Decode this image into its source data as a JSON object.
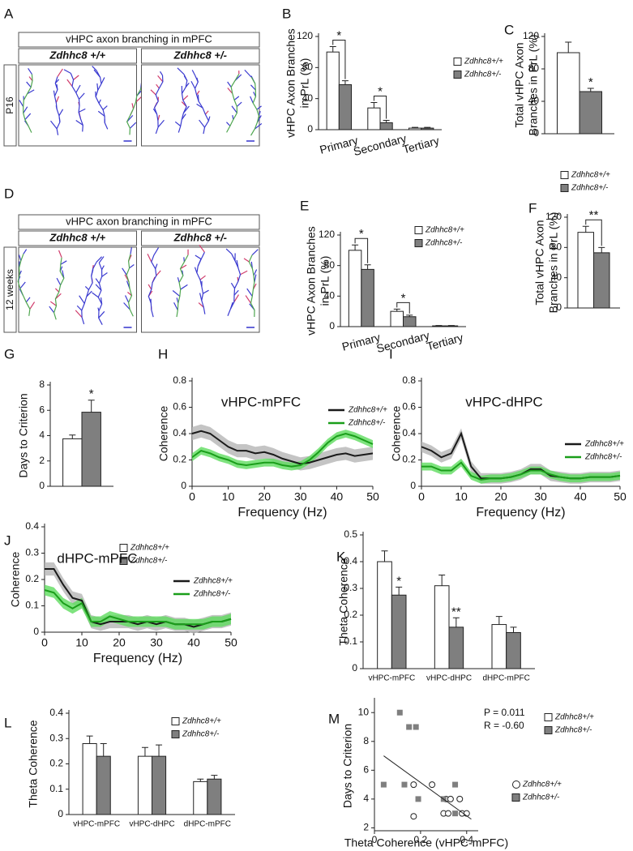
{
  "chart_data": [
    {
      "panel": "A",
      "type": "image",
      "title": "vHPC axon branching in mPFC",
      "columns": [
        "Zdhhc8 +/+",
        "Zdhhc8 +/-"
      ],
      "row_label": "P16"
    },
    {
      "panel": "B",
      "type": "bar",
      "ylabel": [
        "vHPC Axon Branches",
        "in PrL (%)"
      ],
      "categories": [
        "Primary",
        "Secondary",
        "Tertiary"
      ],
      "series": [
        {
          "name": "Zdhhc8+/+",
          "color": "#ffffff",
          "values": [
            100,
            28,
            2
          ],
          "errors": [
            7,
            7,
            1
          ]
        },
        {
          "name": "Zdhhc8+/-",
          "color": "#7f7f7f",
          "values": [
            58,
            9,
            2
          ],
          "errors": [
            5,
            3,
            1
          ]
        }
      ],
      "ylim": [
        0,
        120
      ],
      "yticks": [
        0,
        40,
        80,
        120
      ],
      "brackets": true,
      "annotations": [
        {
          "text": "*",
          "category": 0
        },
        {
          "text": "*",
          "category": 1
        }
      ]
    },
    {
      "panel": "C",
      "type": "bar",
      "ylabel": [
        "Total vHPC Axon",
        "Branches in PrL (%)"
      ],
      "series": [
        {
          "name": "Zdhhc8+/+",
          "color": "#ffffff",
          "values": [
            100
          ],
          "errors": [
            13
          ]
        },
        {
          "name": "Zdhhc8+/-",
          "color": "#7f7f7f",
          "values": [
            52
          ],
          "errors": [
            4
          ]
        }
      ],
      "ylim": [
        0,
        120
      ],
      "yticks": [
        0,
        40,
        80,
        120
      ],
      "brackets": false,
      "annotations": [
        {
          "text": "*",
          "category": 0
        }
      ]
    },
    {
      "panel": "D",
      "type": "image",
      "title": "vHPC axon branching in mPFC",
      "columns": [
        "Zdhhc8 +/+",
        "Zdhhc8 +/-"
      ],
      "row_label": "12 weeks"
    },
    {
      "panel": "E",
      "type": "bar",
      "ylabel": [
        "vHPC Axon Branches",
        "in PrL (%)"
      ],
      "categories": [
        "Primary",
        "Secondary",
        "Tertiary"
      ],
      "series": [
        {
          "name": "Zdhhc8+/+",
          "color": "#ffffff",
          "values": [
            100,
            20,
            1
          ],
          "errors": [
            7,
            3,
            0.5
          ]
        },
        {
          "name": "Zdhhc8+/-",
          "color": "#7f7f7f",
          "values": [
            75,
            13,
            1
          ],
          "errors": [
            6,
            2,
            0.5
          ]
        }
      ],
      "ylim": [
        0,
        120
      ],
      "yticks": [
        0,
        40,
        80,
        120
      ],
      "brackets": true,
      "annotations": [
        {
          "text": "*",
          "category": 0
        },
        {
          "text": "*",
          "category": 1
        }
      ]
    },
    {
      "panel": "F",
      "type": "bar",
      "ylabel": [
        "Total vHPC Axon",
        "Branches in PrL (%)"
      ],
      "series": [
        {
          "name": "Zdhhc8+/+",
          "color": "#ffffff",
          "values": [
            100
          ],
          "errors": [
            8
          ]
        },
        {
          "name": "Zdhhc8+/-",
          "color": "#7f7f7f",
          "values": [
            73
          ],
          "errors": [
            7
          ]
        }
      ],
      "ylim": [
        0,
        120
      ],
      "yticks": [
        0,
        40,
        80,
        120
      ],
      "brackets": true,
      "annotations": [
        {
          "text": "**",
          "category": 0
        }
      ]
    },
    {
      "panel": "G",
      "type": "bar",
      "ylabel": [
        "Days to Criterion"
      ],
      "series": [
        {
          "name": "Zdhhc8+/+",
          "color": "#ffffff",
          "values": [
            3.75
          ],
          "errors": [
            0.3
          ]
        },
        {
          "name": "Zdhhc8+/-",
          "color": "#7f7f7f",
          "values": [
            5.85
          ],
          "errors": [
            0.95
          ]
        }
      ],
      "ylim": [
        0,
        8
      ],
      "yticks": [
        0,
        2,
        4,
        6,
        8
      ],
      "brackets": false,
      "annotations": [
        {
          "text": "*",
          "category": 0
        }
      ]
    },
    {
      "panel": "H",
      "type": "line",
      "title": "vHPC-mPFC",
      "xlabel": "Frequency (Hz)",
      "ylabel": [
        "Coherence"
      ],
      "x": [
        0,
        2.5,
        5,
        7.5,
        10,
        12.5,
        15,
        17.5,
        20,
        22.5,
        25,
        27.5,
        30,
        32.5,
        35,
        37.5,
        40,
        42.5,
        45,
        47.5,
        50
      ],
      "series": [
        {
          "name": "Zdhhc8+/+",
          "color": "#1a1a1a",
          "band_color": "#b5b5b5",
          "error": 0.05,
          "values": [
            0.4,
            0.42,
            0.4,
            0.35,
            0.3,
            0.27,
            0.27,
            0.25,
            0.26,
            0.24,
            0.21,
            0.19,
            0.17,
            0.18,
            0.2,
            0.22,
            0.24,
            0.25,
            0.23,
            0.24,
            0.25
          ]
        },
        {
          "name": "Zdhhc8+/-",
          "color": "#1a9e1a",
          "band_color": "#5fdc5f",
          "error": 0.03,
          "values": [
            0.22,
            0.27,
            0.25,
            0.22,
            0.2,
            0.17,
            0.16,
            0.17,
            0.18,
            0.18,
            0.16,
            0.15,
            0.16,
            0.2,
            0.26,
            0.33,
            0.38,
            0.4,
            0.38,
            0.35,
            0.32
          ]
        }
      ],
      "xlim": [
        0,
        50
      ],
      "xticks": [
        0,
        10,
        20,
        30,
        40,
        50
      ],
      "ylim": [
        0,
        0.8
      ],
      "yticks": [
        0,
        0.2,
        0.4,
        0.6,
        0.8
      ]
    },
    {
      "panel": "I",
      "type": "line",
      "title": "vHPC-dHPC",
      "xlabel": "Frequency (Hz)",
      "ylabel": [
        "Coherence"
      ],
      "x": [
        0,
        2.5,
        5,
        7.5,
        10,
        12.5,
        15,
        17.5,
        20,
        22.5,
        25,
        27.5,
        30,
        32.5,
        35,
        37.5,
        40,
        42.5,
        45,
        47.5,
        50
      ],
      "series": [
        {
          "name": "Zdhhc8+/+",
          "color": "#1a1a1a",
          "band_color": "#b5b5b5",
          "error": 0.04,
          "values": [
            0.3,
            0.27,
            0.22,
            0.25,
            0.4,
            0.15,
            0.06,
            0.06,
            0.06,
            0.07,
            0.09,
            0.13,
            0.13,
            0.08,
            0.07,
            0.06,
            0.06,
            0.07,
            0.07,
            0.07,
            0.08
          ]
        },
        {
          "name": "Zdhhc8+/-",
          "color": "#1a9e1a",
          "band_color": "#5fdc5f",
          "error": 0.03,
          "values": [
            0.15,
            0.15,
            0.12,
            0.12,
            0.18,
            0.08,
            0.05,
            0.06,
            0.06,
            0.07,
            0.09,
            0.12,
            0.12,
            0.09,
            0.07,
            0.06,
            0.06,
            0.07,
            0.07,
            0.07,
            0.08
          ]
        }
      ],
      "xlim": [
        0,
        50
      ],
      "xticks": [
        0,
        10,
        20,
        30,
        40,
        50
      ],
      "ylim": [
        0,
        0.8
      ],
      "yticks": [
        0,
        0.2,
        0.4,
        0.6,
        0.8
      ]
    },
    {
      "panel": "J",
      "type": "line",
      "title": "dHPC-mPFC",
      "xlabel": "Frequency (Hz)",
      "ylabel": [
        "Coherence"
      ],
      "x": [
        0,
        2.5,
        5,
        7.5,
        10,
        12.5,
        15,
        17.5,
        20,
        22.5,
        25,
        27.5,
        30,
        32.5,
        35,
        37.5,
        40,
        42.5,
        45,
        47.5,
        50
      ],
      "series": [
        {
          "name": "Zdhhc8+/+",
          "color": "#1a1a1a",
          "band_color": "#b5b5b5",
          "error": 0.025,
          "values": [
            0.24,
            0.24,
            0.18,
            0.13,
            0.12,
            0.04,
            0.03,
            0.04,
            0.04,
            0.04,
            0.03,
            0.04,
            0.03,
            0.04,
            0.03,
            0.03,
            0.02,
            0.03,
            0.04,
            0.04,
            0.05
          ]
        },
        {
          "name": "Zdhhc8+/-",
          "color": "#1a9e1a",
          "band_color": "#5fdc5f",
          "error": 0.02,
          "values": [
            0.16,
            0.15,
            0.11,
            0.09,
            0.11,
            0.04,
            0.04,
            0.06,
            0.05,
            0.04,
            0.04,
            0.04,
            0.04,
            0.04,
            0.03,
            0.03,
            0.03,
            0.03,
            0.04,
            0.04,
            0.05
          ]
        }
      ],
      "xlim": [
        0,
        50
      ],
      "xticks": [
        0,
        10,
        20,
        30,
        40,
        50
      ],
      "ylim": [
        0,
        0.4
      ],
      "yticks": [
        0,
        0.1,
        0.2,
        0.3,
        0.4
      ]
    },
    {
      "panel": "K",
      "type": "bar",
      "ylabel": [
        "Theta Coherence"
      ],
      "categories": [
        "vHPC-mPFC",
        "vHPC-dHPC",
        "dHPC-mPFC"
      ],
      "series": [
        {
          "name": "Zdhhc8+/+",
          "color": "#ffffff",
          "values": [
            0.4,
            0.31,
            0.165
          ],
          "errors": [
            0.04,
            0.04,
            0.03
          ]
        },
        {
          "name": "Zdhhc8+/-",
          "color": "#7f7f7f",
          "values": [
            0.275,
            0.155,
            0.135
          ],
          "errors": [
            0.03,
            0.035,
            0.02
          ]
        }
      ],
      "ylim": [
        0,
        0.5
      ],
      "yticks": [
        0,
        0.1,
        0.2,
        0.3,
        0.4,
        0.5
      ],
      "brackets": false,
      "annotations": [
        {
          "text": "*",
          "category": 0
        },
        {
          "text": "**",
          "category": 1
        }
      ]
    },
    {
      "panel": "L",
      "type": "bar",
      "ylabel": [
        "Theta Coherence"
      ],
      "categories": [
        "vHPC-mPFC",
        "vHPC-dHPC",
        "dHPC-mPFC"
      ],
      "series": [
        {
          "name": "Zdhhc8+/+",
          "color": "#ffffff",
          "values": [
            0.28,
            0.23,
            0.13
          ],
          "errors": [
            0.03,
            0.035,
            0.01
          ]
        },
        {
          "name": "Zdhhc8+/-",
          "color": "#7f7f7f",
          "values": [
            0.23,
            0.23,
            0.14
          ],
          "errors": [
            0.05,
            0.045,
            0.015
          ]
        }
      ],
      "ylim": [
        0,
        0.4
      ],
      "yticks": [
        0,
        0.1,
        0.2,
        0.3,
        0.4
      ],
      "brackets": false,
      "annotations": []
    },
    {
      "panel": "M",
      "type": "scatter",
      "xlabel": "Theta Coherence (vHPC-mPFC)",
      "ylabel": [
        "Days to Criterion"
      ],
      "annotations": [
        "P = 0.011",
        "R = -0.60"
      ],
      "series": [
        {
          "name": "Zdhhc8+/+",
          "marker": "circle",
          "color": "#ffffff",
          "x": [
            0.17,
            0.25,
            0.31,
            0.33,
            0.3,
            0.32,
            0.37,
            0.38,
            0.4,
            0.17
          ],
          "values": [
            5,
            5,
            4,
            4,
            3,
            3,
            4,
            3,
            3,
            2.8
          ]
        },
        {
          "name": "Zdhhc8+/-",
          "marker": "square",
          "color": "#7f7f7f",
          "x": [
            0.04,
            0.11,
            0.15,
            0.18,
            0.13,
            0.19,
            0.35,
            0.35,
            0.3
          ],
          "values": [
            5,
            10,
            9,
            9,
            5,
            4,
            3,
            5,
            4
          ]
        }
      ],
      "trendline": {
        "x": [
          0.04,
          0.42
        ],
        "y": [
          7.0,
          2.6
        ]
      },
      "xlim": [
        0,
        0.45
      ],
      "xticks": [
        0,
        0.2,
        0.4
      ],
      "ylim": [
        1.8,
        10.8
      ],
      "yticks": [
        2,
        4,
        6,
        8,
        10
      ]
    }
  ]
}
